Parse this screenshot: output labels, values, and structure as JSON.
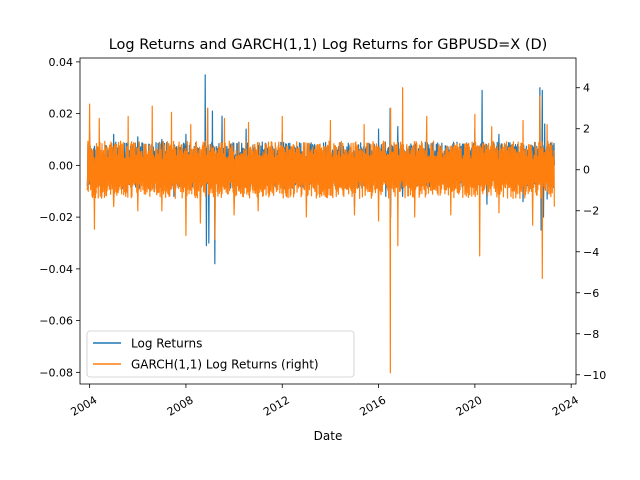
{
  "chart_data": {
    "type": "line",
    "title": "Log Returns and GARCH(1,1) Log Returns for GBPUSD=X (D)",
    "xlabel": "Date",
    "ylabel": "",
    "y2label": "",
    "xlim": [
      2003.6,
      2024.2
    ],
    "ylim": [
      -0.0845,
      0.0415
    ],
    "y2lim": [
      -10.45,
      5.45
    ],
    "x_ticks": [
      2004,
      2008,
      2012,
      2016,
      2020,
      2024
    ],
    "x_tick_labels": [
      "2004",
      "2008",
      "2012",
      "2016",
      "2020",
      "2024"
    ],
    "y_ticks": [
      0.04,
      0.02,
      0.0,
      -0.02,
      -0.04,
      -0.06,
      -0.08
    ],
    "y_tick_labels": [
      "0.04",
      "0.02",
      "0.00",
      "−0.02",
      "−0.04",
      "−0.06",
      "−0.08"
    ],
    "y2_ticks": [
      4,
      2,
      0,
      -2,
      -4,
      -6,
      -8,
      -10
    ],
    "y2_tick_labels": [
      "4",
      "2",
      "0",
      "−2",
      "−4",
      "−6",
      "−8",
      "−10"
    ],
    "grid": false,
    "legend_position": "lower-left",
    "colors": {
      "log_returns": "#1f77b4",
      "garch": "#ff7f0e"
    },
    "series": [
      {
        "name": "Log Returns",
        "axis": "left",
        "color": "#1f77b4",
        "x": [
          2003.9,
          2004.0,
          2004.5,
          2005.0,
          2005.5,
          2006.0,
          2006.5,
          2007.0,
          2007.5,
          2008.0,
          2008.6,
          2008.8,
          2008.85,
          2008.9,
          2008.95,
          2009.1,
          2009.2,
          2009.5,
          2010.0,
          2010.5,
          2011.0,
          2012.0,
          2013.0,
          2014.0,
          2015.0,
          2016.0,
          2016.3,
          2016.48,
          2016.5,
          2016.8,
          2017.0,
          2018.0,
          2019.0,
          2020.0,
          2020.3,
          2020.5,
          2021.0,
          2022.0,
          2022.7,
          2022.75,
          2022.8,
          2022.85,
          2022.9,
          2023.0,
          2023.3
        ],
        "y": [
          -0.008,
          0.013,
          -0.012,
          0.012,
          -0.011,
          0.011,
          -0.01,
          0.01,
          -0.012,
          0.012,
          -0.015,
          0.035,
          -0.031,
          0.022,
          -0.03,
          0.021,
          -0.038,
          0.019,
          -0.015,
          0.014,
          -0.013,
          0.012,
          -0.012,
          0.011,
          -0.016,
          0.014,
          -0.012,
          0.022,
          -0.02,
          0.015,
          -0.012,
          0.012,
          -0.012,
          0.014,
          0.029,
          -0.015,
          0.012,
          -0.014,
          0.03,
          -0.025,
          0.029,
          -0.02,
          0.016,
          -0.013,
          0.0
        ]
      },
      {
        "name": "GARCH(1,1) Log Returns (right)",
        "axis": "right",
        "color": "#ff7f0e",
        "x": [
          2003.9,
          2004.0,
          2004.2,
          2004.4,
          2005.0,
          2005.6,
          2006.0,
          2006.6,
          2007.0,
          2007.4,
          2008.0,
          2008.2,
          2008.6,
          2008.9,
          2009.2,
          2009.6,
          2010.0,
          2010.6,
          2011.0,
          2012.0,
          2013.0,
          2014.0,
          2015.0,
          2015.4,
          2016.0,
          2016.49,
          2016.5,
          2016.8,
          2017.0,
          2017.5,
          2018.0,
          2019.0,
          2020.0,
          2020.2,
          2020.7,
          2021.0,
          2022.0,
          2022.4,
          2022.7,
          2022.8,
          2023.0,
          2023.3
        ],
        "y": [
          -1.0,
          3.2,
          -2.9,
          2.5,
          -1.8,
          2.6,
          -2.0,
          3.1,
          -2.0,
          2.8,
          -3.2,
          2.2,
          -2.6,
          3.0,
          -3.4,
          2.5,
          -2.2,
          2.3,
          -2.0,
          2.6,
          -2.3,
          2.4,
          -2.2,
          2.2,
          -2.5,
          -9.9,
          3.0,
          -3.7,
          4.0,
          -2.3,
          2.6,
          -2.2,
          2.7,
          -4.2,
          2.1,
          -2.1,
          2.4,
          -2.7,
          3.6,
          -5.3,
          2.2,
          -1.8
        ]
      }
    ]
  }
}
